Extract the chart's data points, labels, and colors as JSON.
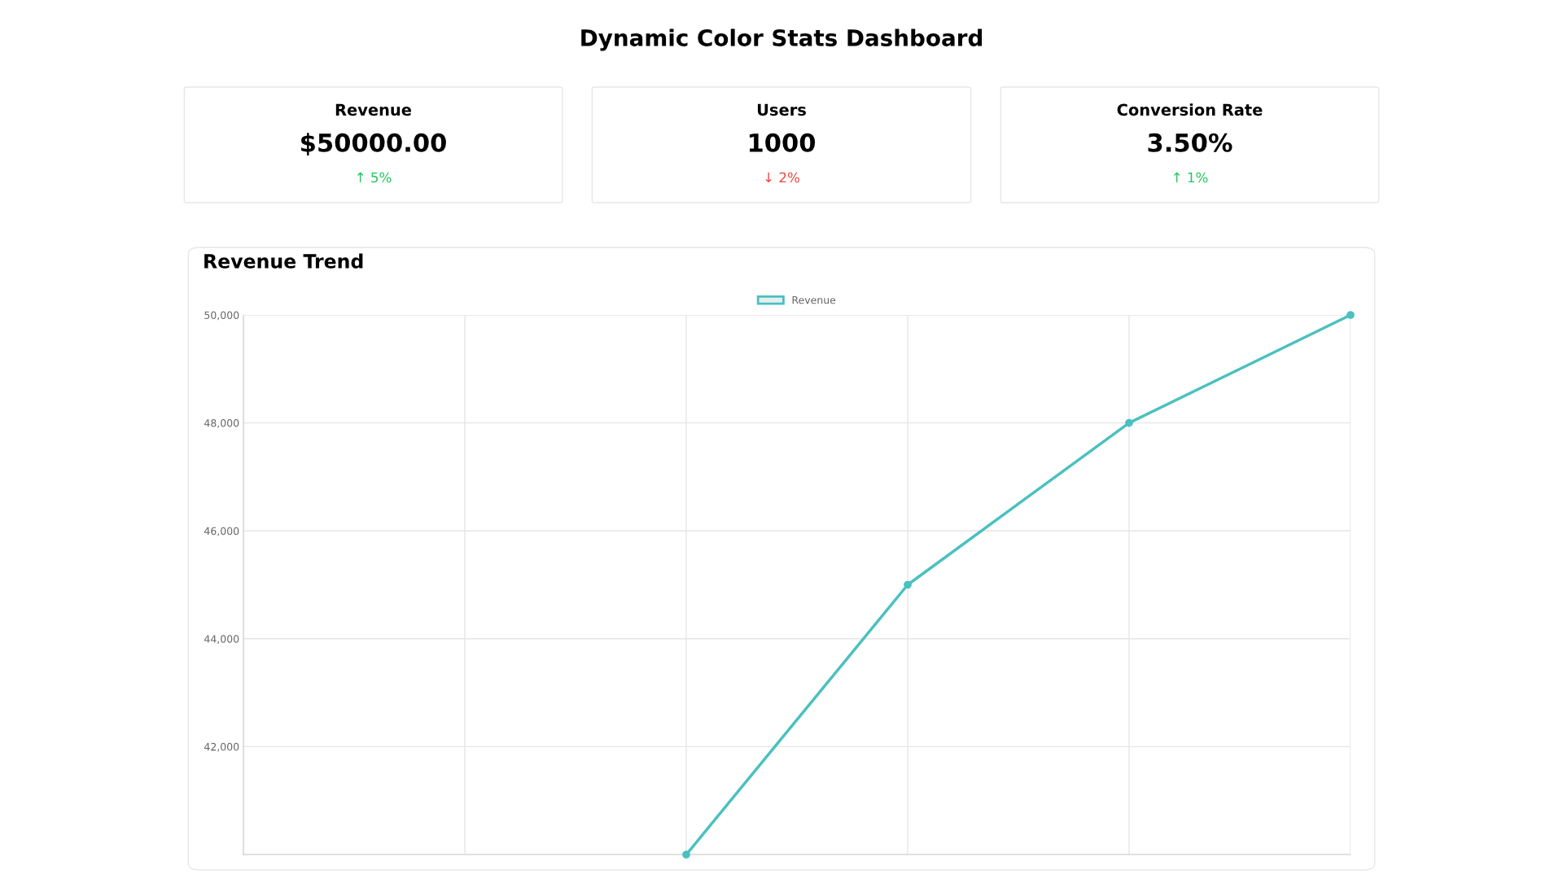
{
  "chart_data": [
    {
      "type": "other",
      "title": "Dynamic Color Stats Dashboard"
    },
    {
      "type": "other",
      "title": "Revenue",
      "annotations": [
        "$50000.00",
        "↑ 5%"
      ],
      "color": "#22c55e"
    },
    {
      "type": "other",
      "title": "Users",
      "annotations": [
        "1000",
        "↓ 2%"
      ],
      "color": "#ef4444"
    },
    {
      "type": "other",
      "title": "Conversion Rate",
      "annotations": [
        "3.50%",
        "↑ 1%"
      ],
      "color": "#22c55e"
    },
    {
      "type": "line",
      "title": "Revenue Trend",
      "categories": [
        null,
        null,
        null,
        null,
        null,
        null
      ],
      "series": [
        {
          "name": "Revenue",
          "color": "#4bc0c0",
          "values": [
            null,
            null,
            40000,
            45000,
            48000,
            50000
          ]
        }
      ],
      "ylim": [
        40000,
        50000
      ],
      "yticks": [
        {
          "value": 40000,
          "label": null
        },
        {
          "value": 42000,
          "label": "42,000"
        },
        {
          "value": 44000,
          "label": "44,000"
        },
        {
          "value": 46000,
          "label": "46,000"
        },
        {
          "value": 48000,
          "label": "48,000"
        },
        {
          "value": 50000,
          "label": "50,000"
        }
      ],
      "grid": true,
      "legend": "top",
      "marker": "circle",
      "tick_labels": "y"
    }
  ]
}
